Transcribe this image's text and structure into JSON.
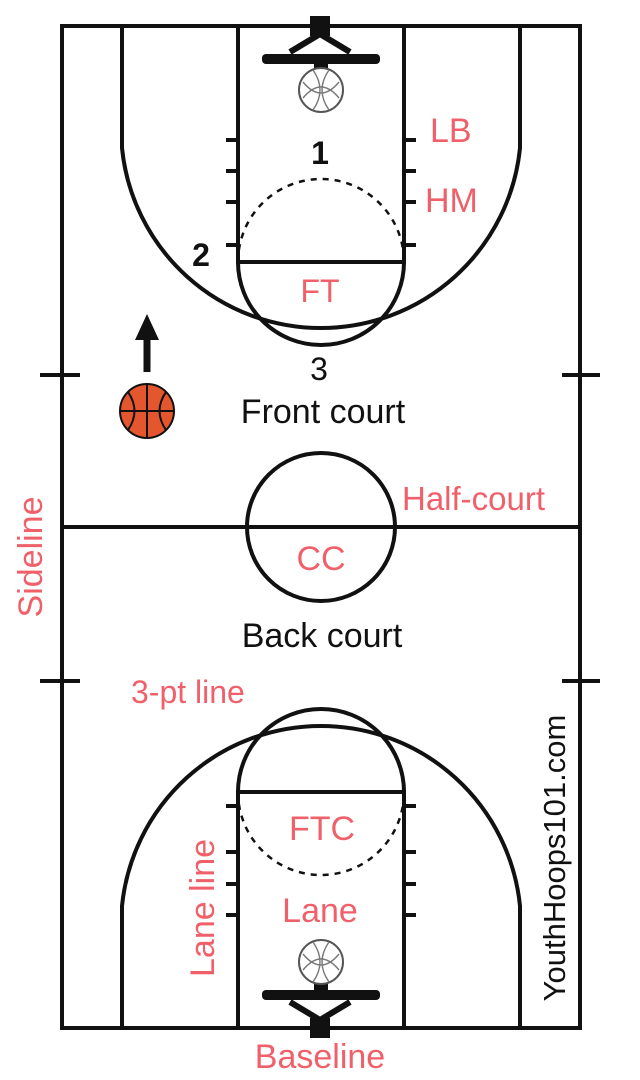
{
  "labels": {
    "lb": "LB",
    "hm": "HM",
    "ft": "FT",
    "pos1": "1",
    "pos2": "2",
    "pos3": "3",
    "front_court": "Front court",
    "half_court": "Half-court",
    "cc": "CC",
    "back_court": "Back court",
    "sideline": "Sideline",
    "three_pt_line": "3-pt line",
    "ftc": "FTC",
    "lane": "Lane",
    "lane_line": "Lane line",
    "baseline": "Baseline",
    "website": "YouthHoops101.com"
  },
  "colors": {
    "label_red": "#f0606a",
    "ball_orange": "#e4572e",
    "line_black": "#111111"
  },
  "icons": {
    "ball": "basketball-icon",
    "arrow": "arrow-up-icon",
    "net": "net-icon"
  }
}
